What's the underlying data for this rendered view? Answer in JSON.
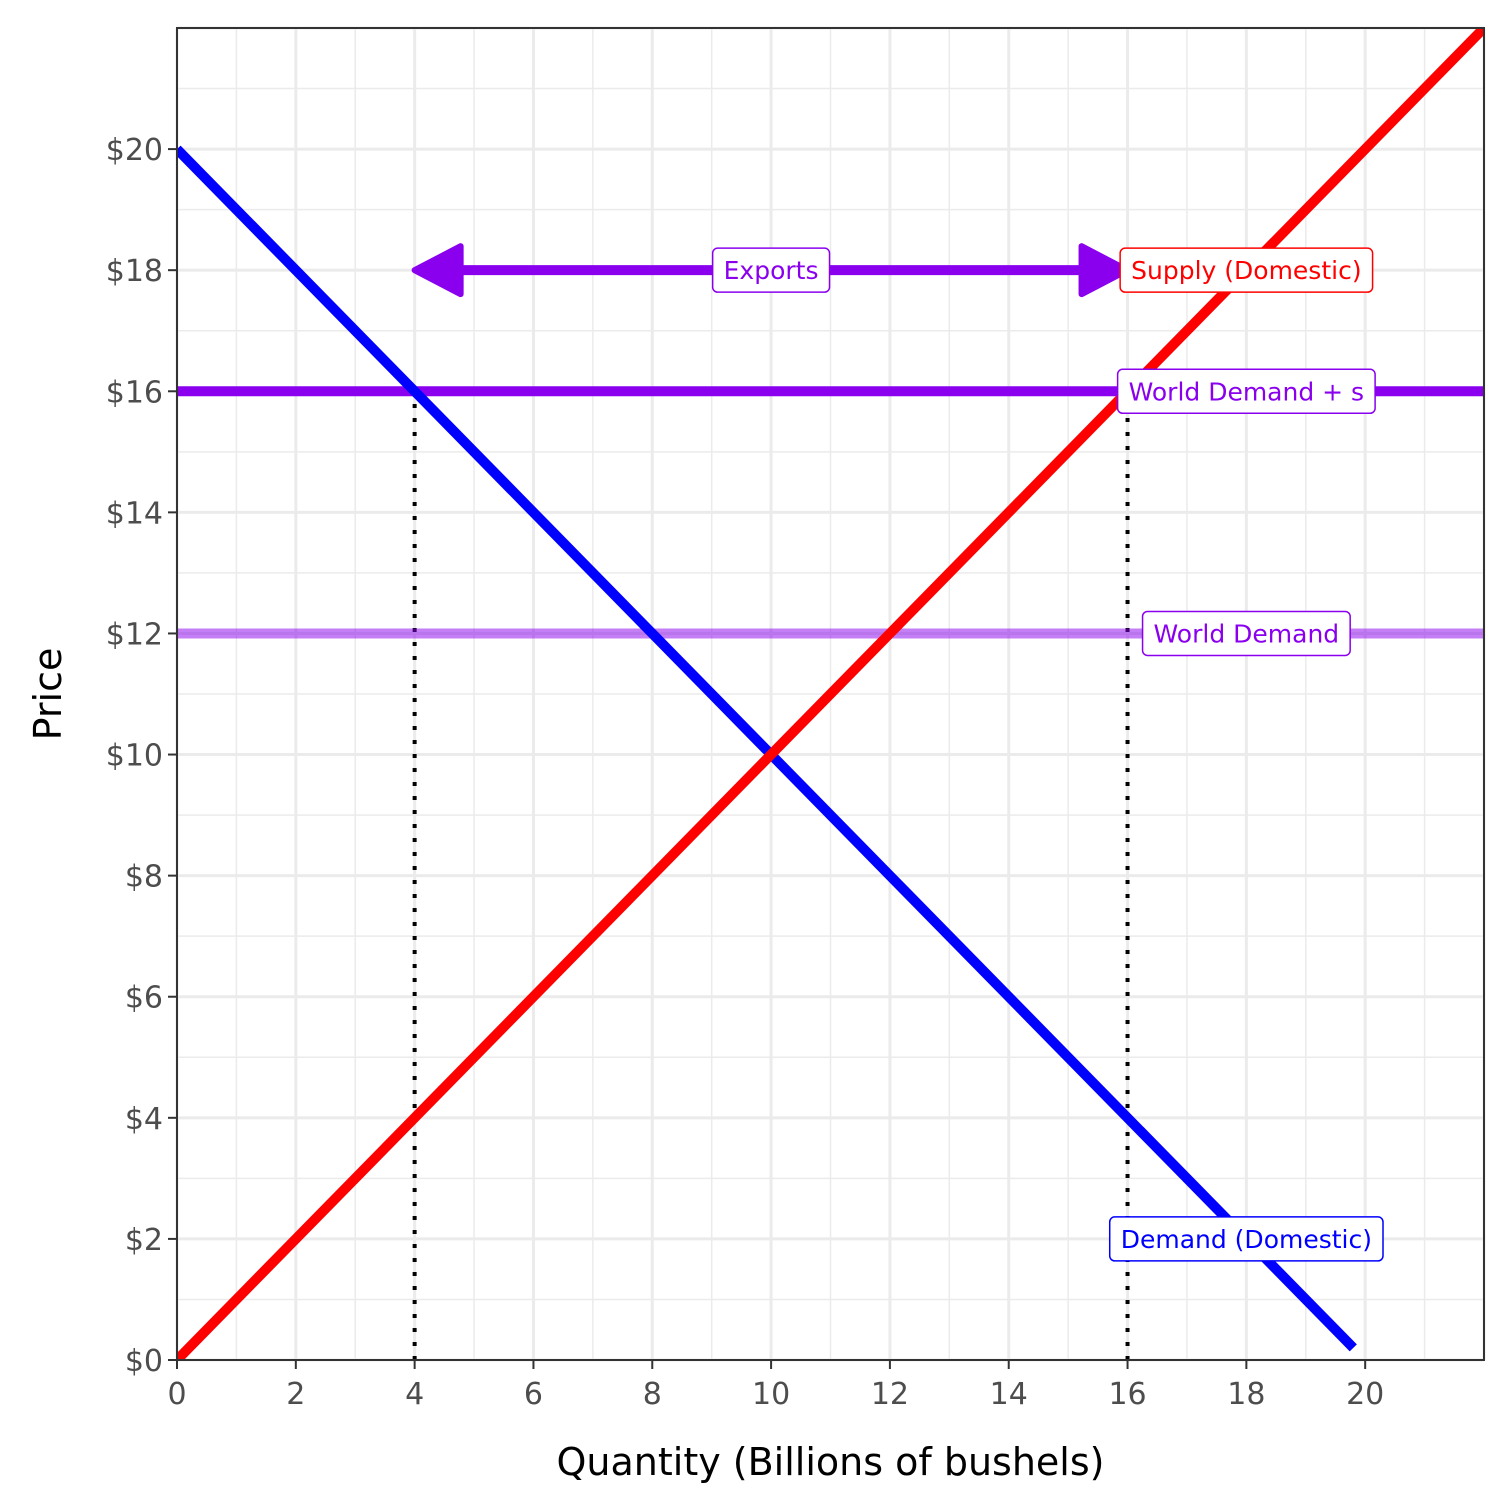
{
  "chart_data": {
    "type": "line",
    "xlabel": "Quantity (Billions of bushels)",
    "ylabel": "Price",
    "xlim": [
      0,
      22
    ],
    "ylim": [
      0,
      22
    ],
    "x_ticks": [
      0,
      2,
      4,
      6,
      8,
      10,
      12,
      14,
      16,
      18,
      20
    ],
    "x_tick_labels": [
      "0",
      "2",
      "4",
      "6",
      "8",
      "10",
      "12",
      "14",
      "16",
      "18",
      "20"
    ],
    "y_ticks": [
      0,
      2,
      4,
      6,
      8,
      10,
      12,
      14,
      16,
      18,
      20
    ],
    "y_tick_labels": [
      "$0",
      "$2",
      "$4",
      "$6",
      "$8",
      "$10",
      "$12",
      "$14",
      "$16",
      "$18",
      "$20"
    ],
    "grid": true,
    "series": [
      {
        "name": "Supply (Domestic)",
        "color": "#ff0000",
        "opacity": 1,
        "points": [
          [
            0,
            0
          ],
          [
            22,
            22
          ]
        ]
      },
      {
        "name": "Demand (Domestic)",
        "color": "#0000ff",
        "opacity": 1,
        "points": [
          [
            0,
            20
          ],
          [
            19.8,
            0.2
          ]
        ]
      },
      {
        "name": "World Demand + s",
        "color": "#8a00ee",
        "opacity": 1,
        "points": [
          [
            0,
            16
          ],
          [
            22,
            16
          ]
        ]
      },
      {
        "name": "World Demand",
        "color": "#8a00ee",
        "opacity": 0.5,
        "points": [
          [
            0,
            12
          ],
          [
            22,
            12
          ]
        ]
      }
    ],
    "reference_lines": [
      {
        "x": 4,
        "y_from": 0,
        "y_to": 16,
        "style": "dotted",
        "color": "#000000"
      },
      {
        "x": 16,
        "y_from": 0,
        "y_to": 16,
        "style": "dotted",
        "color": "#000000"
      }
    ],
    "arrows": [
      {
        "label": "Exports",
        "from": [
          4,
          18
        ],
        "to": [
          16,
          18
        ],
        "double_headed": true,
        "color": "#8a00ee"
      }
    ],
    "annotations": [
      {
        "text": "Exports",
        "x": 10,
        "y": 18,
        "color": "#8a00ee"
      },
      {
        "text": "Supply (Domestic)",
        "x": 18,
        "y": 18,
        "color": "#ff0000"
      },
      {
        "text": "World Demand + s",
        "x": 18,
        "y": 16,
        "color": "#8a00ee"
      },
      {
        "text": "World Demand",
        "x": 18,
        "y": 12,
        "color": "#8a00ee"
      },
      {
        "text": "Demand (Domestic)",
        "x": 18,
        "y": 2,
        "color": "#0000ff"
      }
    ]
  }
}
